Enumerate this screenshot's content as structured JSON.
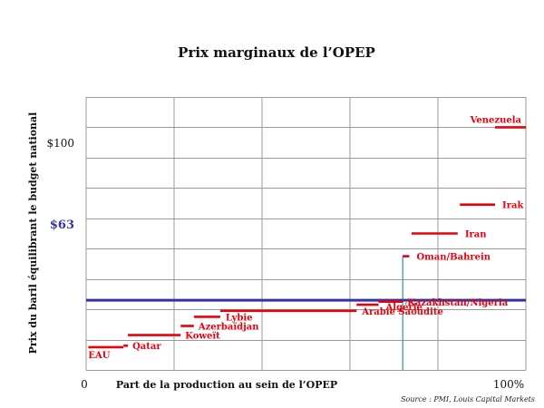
{
  "chart_data": {
    "type": "step",
    "title": "Prix marginaux de l’OPEP",
    "xlabel": "Part de la production au sein de l’OPEP",
    "ylabel": "Prix du baril équilibrant le budget national",
    "x_tick_labels": [
      "0",
      "100%"
    ],
    "y_tick_labels": [
      "$100"
    ],
    "xlim": [
      0,
      100
    ],
    "ylim": [
      40,
      130
    ],
    "grid": true,
    "reference_line": {
      "value": 63,
      "label": "$63",
      "color": "#3333a6"
    },
    "reference_share_percent": 72,
    "series_color": "#e8000b",
    "source": "Source : PMI, Louis Capital Markets",
    "segments": [
      {
        "label": "EAU",
        "x_start": 0.5,
        "x_end": 8.5,
        "value": 47.5
      },
      {
        "label": "Qatar",
        "x_start": 8.5,
        "x_end": 9.5,
        "value": 48.0
      },
      {
        "label": "Koweït",
        "x_start": 9.5,
        "x_end": 21.5,
        "value": 51.5
      },
      {
        "label": "Azerbaïdjan",
        "x_start": 21.5,
        "x_end": 24.5,
        "value": 54.5
      },
      {
        "label": "Lybie",
        "x_start": 24.5,
        "x_end": 30.5,
        "value": 57.5
      },
      {
        "label": "Arabie Saoudite",
        "x_start": 30.5,
        "x_end": 61.5,
        "value": 59.5
      },
      {
        "label": "Algérie",
        "x_start": 61.5,
        "x_end": 66.5,
        "value": 61.5
      },
      {
        "label": "Kazakhstan/Nigeria",
        "x_start": 66.5,
        "x_end": 72.0,
        "value": 62.5
      },
      {
        "label": "Oman/Bahrein",
        "x_start": 72.0,
        "x_end": 73.5,
        "value": 77.5
      },
      {
        "label": "Iran",
        "x_start": 74.0,
        "x_end": 84.5,
        "value": 85.0
      },
      {
        "label": "Irak",
        "x_start": 85.0,
        "x_end": 93.0,
        "value": 94.5
      },
      {
        "label": "Venezuela",
        "x_start": 93.0,
        "x_end": 100,
        "value": 120.0
      }
    ]
  }
}
